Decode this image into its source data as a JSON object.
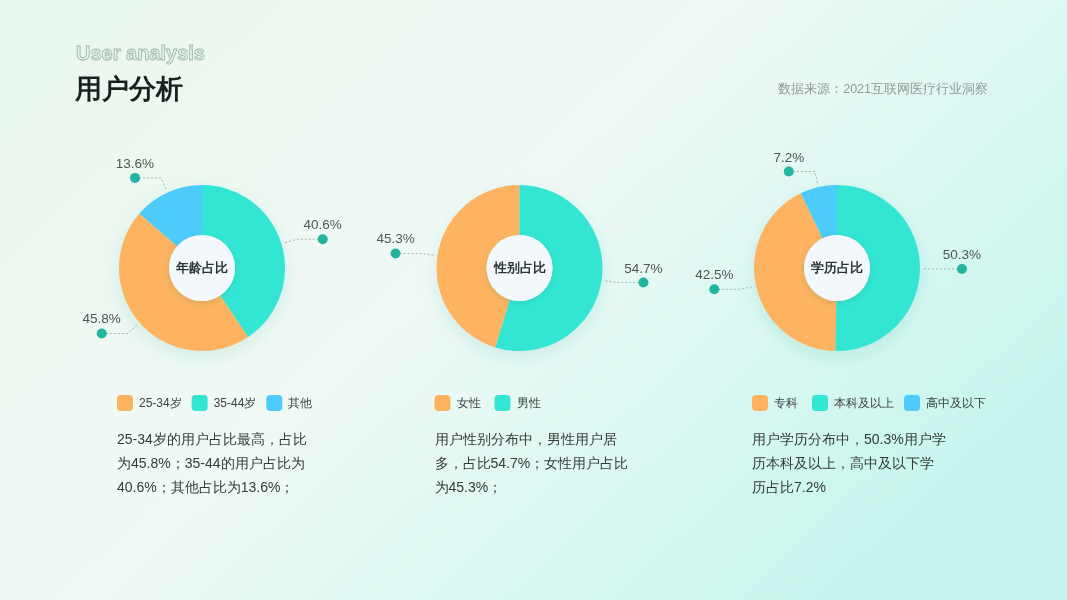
{
  "chart_data": [
    {
      "type": "other",
      "title": "用户分析",
      "subtitle": "User analysis",
      "annotations": [
        "数据来源：2021互联网医疗行业洞察"
      ]
    },
    {
      "type": "donut",
      "title": "年龄占比",
      "categories": [
        "25-34岁",
        "35-44岁",
        "其他"
      ],
      "values": [
        45.8,
        40.6,
        13.6
      ],
      "value_labels": [
        "45.8%",
        "40.6%",
        "13.6%"
      ],
      "colors": [
        "#fdb35e",
        "#33e6d3",
        "#4dcbfc"
      ],
      "legend": "bottom",
      "annotations": [
        "25-34岁的用户占比最高，占比为45.8%；35-44的用户占比为40.6%；其他占比为13.6%；"
      ]
    },
    {
      "type": "donut",
      "title": "性别占比",
      "categories": [
        "女性",
        "男性"
      ],
      "values": [
        45.3,
        54.7
      ],
      "value_labels": [
        "45.3%",
        "54.7%"
      ],
      "colors": [
        "#fdb35e",
        "#33e6d3"
      ],
      "legend": "bottom",
      "annotations": [
        "用户性别分布中，男性用户居多，占比54.7%；女性用户占比为45.3%；"
      ]
    },
    {
      "type": "donut",
      "title": "学历占比",
      "categories": [
        "专科",
        "本科及以上",
        "高中及以下"
      ],
      "values": [
        42.5,
        50.3,
        7.2
      ],
      "value_labels": [
        "42.5%",
        "50.3%",
        "7.2%"
      ],
      "colors": [
        "#fdb35e",
        "#33e6d3",
        "#4dcbfc"
      ],
      "legend": "bottom",
      "annotations": [
        "用户学历分布中，50.3%用户学历本科及以上，高中及以下学历占比7.2%"
      ]
    }
  ]
}
